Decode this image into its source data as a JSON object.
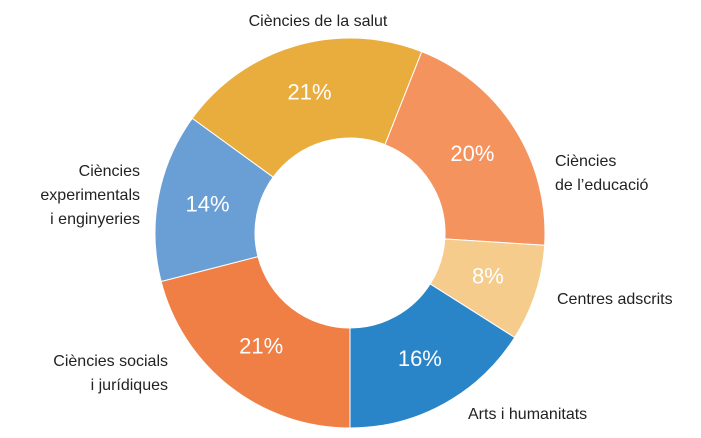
{
  "chart_data": {
    "type": "donut",
    "categories": [
      [
        "Ciències de la salut"
      ],
      [
        "Ciències",
        "de l’educació"
      ],
      [
        "Centres adscrits"
      ],
      [
        "Arts i humanitats"
      ],
      [
        "Ciències socials",
        "i jurídiques"
      ],
      [
        "Ciències",
        "experimentals",
        "i enginyeries"
      ]
    ],
    "values": [
      21,
      20,
      8,
      16,
      21,
      14
    ],
    "value_labels": [
      "21%",
      "20%",
      "8%",
      "16%",
      "21%",
      "14%"
    ],
    "colors": [
      "#e9ad3d",
      "#f4935d",
      "#f5cc8b",
      "#2a85c8",
      "#f07f45",
      "#6a9fd6"
    ]
  }
}
